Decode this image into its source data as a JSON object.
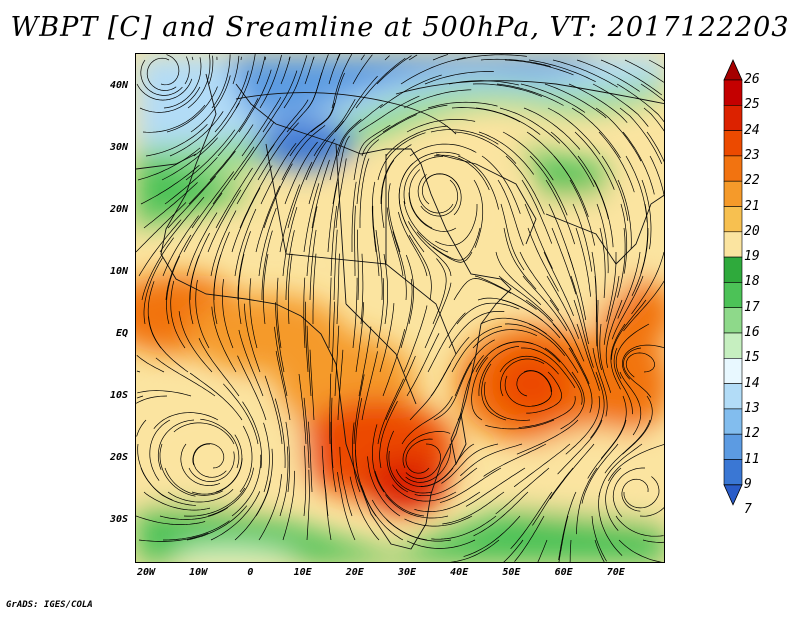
{
  "title": "WBPT [C] and Sreamline at 500hPa, VT: 2017122203",
  "footer": "GrADS: IGES/COLA",
  "lat_labels": [
    "40N",
    "30N",
    "20N",
    "10N",
    "EQ",
    "10S",
    "20S",
    "30S"
  ],
  "lon_labels": [
    "20W",
    "10W",
    "0",
    "10E",
    "20E",
    "30E",
    "40E",
    "50E",
    "60E",
    "70E"
  ],
  "colorbar": {
    "labels": [
      "26",
      "25",
      "24",
      "23",
      "22",
      "21",
      "20",
      "19",
      "18",
      "17",
      "16",
      "15",
      "14",
      "13",
      "12",
      "11",
      "9",
      "7"
    ],
    "colors": [
      "#a50000",
      "#c40000",
      "#dc2200",
      "#ec4a00",
      "#f27310",
      "#f59a2a",
      "#f7c050",
      "#fbe4a0",
      "#2faa3c",
      "#4cc257",
      "#8ed98a",
      "#c6efc0",
      "#e8f8ff",
      "#b2dcf7",
      "#82bdee",
      "#5c9be2",
      "#3a77d4",
      "#2a5cc8"
    ]
  }
}
